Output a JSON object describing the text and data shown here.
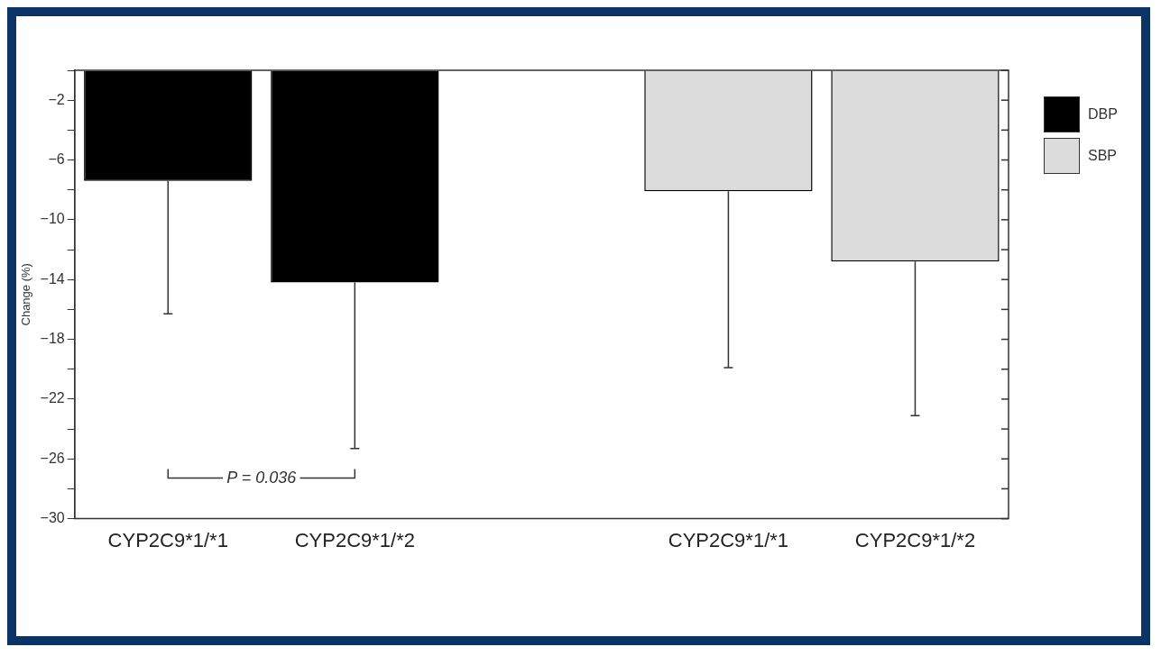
{
  "chart_data": {
    "type": "bar",
    "ylabel": "Change (%)",
    "categories": [
      "CYP2C9*1/*1",
      "CYP2C9*1/*2",
      null,
      "CYP2C9*1/*1",
      "CYP2C9*1/*2"
    ],
    "series": [
      {
        "name": "DBP",
        "color": "#000000",
        "values": [
          -7.4,
          -14.2,
          null,
          null,
          null
        ],
        "errors": [
          [
            -16.3,
            -7.4
          ],
          [
            -25.3,
            -14.2
          ],
          null,
          null,
          null
        ]
      },
      {
        "name": "SBP",
        "color": "#dcdcdc",
        "values": [
          null,
          null,
          null,
          -8.1,
          -12.8
        ],
        "errors": [
          null,
          null,
          null,
          [
            -19.9,
            -8.1
          ],
          [
            -23.1,
            -12.8
          ]
        ]
      }
    ],
    "ylim": [
      -30,
      0
    ],
    "yticks": [
      {
        "value": 0,
        "label": null
      },
      -2,
      {
        "value": -4,
        "label": null
      },
      -6,
      {
        "value": -8,
        "label": null
      },
      -10,
      {
        "value": -12,
        "label": null
      },
      -14,
      {
        "value": -16,
        "label": null
      },
      -18,
      {
        "value": -20,
        "label": null
      },
      -22,
      {
        "value": -24,
        "label": null
      },
      -26,
      {
        "value": -28,
        "label": null
      },
      -30
    ],
    "annotations": [
      "P = 0.036"
    ],
    "grid": false,
    "legend": "top right"
  }
}
